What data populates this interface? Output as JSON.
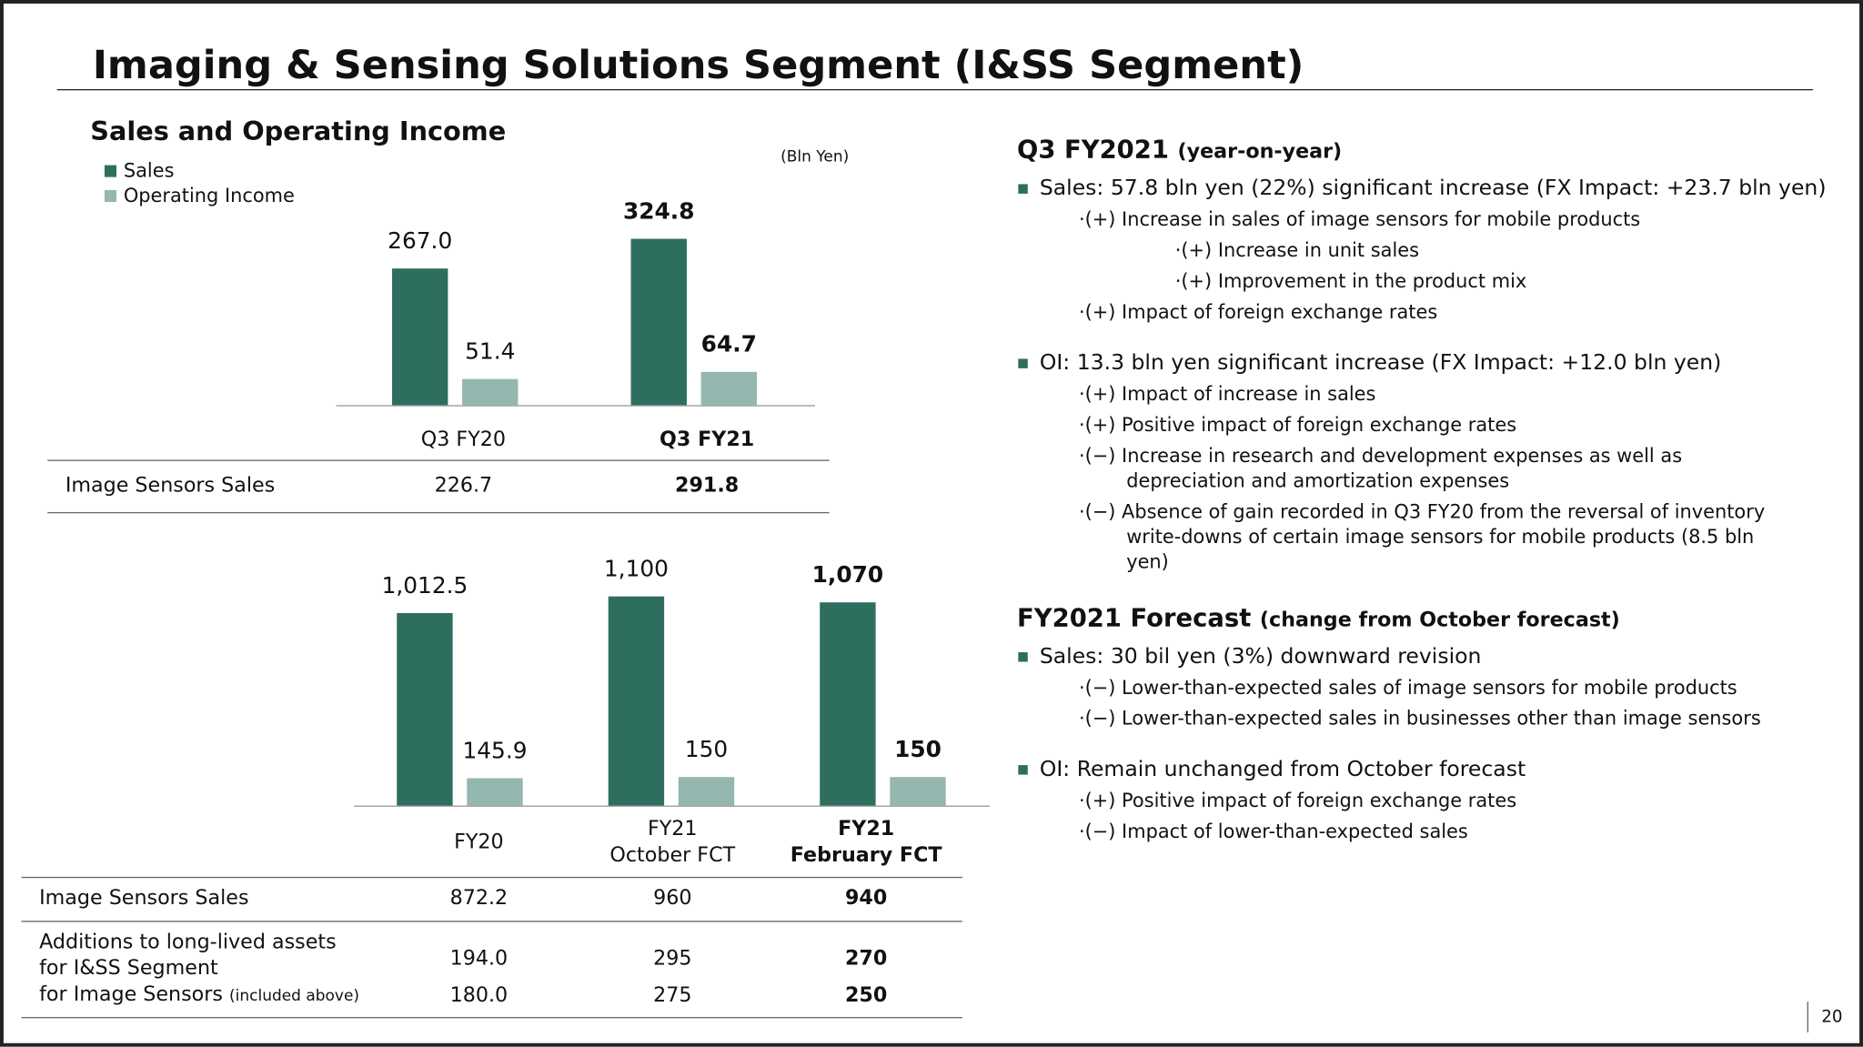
{
  "title": "Imaging & Sensing Solutions Segment (I&SS Segment)",
  "chart_heading": "Sales and Operating Income",
  "unit": "(Bln Yen)",
  "chart_data": [
    {
      "type": "bar",
      "categories": [
        "Q3 FY20",
        "Q3 FY21"
      ],
      "series": [
        {
          "name": "Sales",
          "color": "#2d6e5f",
          "values": [
            267.0,
            324.8
          ],
          "value_labels": [
            "267.0",
            "324.8"
          ]
        },
        {
          "name": "Operating Income",
          "color": "#94b7af",
          "values": [
            51.4,
            64.7
          ]
        }
      ],
      "legend": "top-left"
    },
    {
      "type": "bar",
      "categories": [
        "FY20",
        "FY21\nOctober FCT",
        "FY21\nFebruary FCT"
      ],
      "series": [
        {
          "color": "#2d6e5f",
          "values": [
            1012.5,
            1100,
            1070
          ],
          "value_labels": [
            "1,012.5",
            "1,100",
            "1,070"
          ]
        },
        {
          "color": "#94b7af",
          "values": [
            145.9,
            150,
            150
          ]
        }
      ]
    }
  ],
  "tables": [
    {
      "rows": [
        {
          "label": "Image Sensors Sales",
          "cells": [
            "226.7",
            "291.8"
          ]
        }
      ]
    },
    {
      "rows": [
        {
          "label": "Image Sensors Sales",
          "cells": [
            "872.2",
            "960",
            "940"
          ]
        },
        {
          "label": "Additions to long-lived assets for I&SS Segment",
          "cells": [
            "194.0",
            "295",
            "270"
          ]
        },
        {
          "label": "for Image Sensors",
          "note": "(included above)",
          "cells": [
            "180.0",
            "275",
            "250"
          ]
        }
      ]
    }
  ],
  "sections": [
    {
      "heading": "Q3 FY2021",
      "note": "(year-on-year)",
      "bullets": [
        {
          "text": "Sales: 57.8 bln yen (22%) significant increase (FX Impact: +23.7 bln yen)",
          "details": [
            {
              "text": "·(+) Increase in sales of image sensors for mobile products",
              "details": [
                {
                  "text": "·(+) Increase in unit sales"
                },
                {
                  "text": "·(+) Improvement in the product mix"
                }
              ]
            },
            {
              "text": "·(+) Impact of foreign exchange rates"
            }
          ]
        },
        {
          "text": "OI: 13.3 bln yen significant increase (FX Impact: +12.0 bln yen)",
          "details": [
            {
              "text": "·(+) Impact of increase in sales"
            },
            {
              "text": "·(+) Positive impact of foreign exchange rates"
            },
            {
              "text": "·(−) Increase in research and development expenses as well as depreciation and amortization expenses"
            },
            {
              "text": "·(−) Absence of gain recorded in Q3 FY20 from the reversal of inventory write-downs of certain image sensors for mobile products (8.5 bln yen)"
            }
          ]
        }
      ]
    },
    {
      "heading": "FY2021 Forecast",
      "note": "(change from October forecast)",
      "bullets": [
        {
          "text": "Sales: 30 bil yen (3%) downward revision",
          "details": [
            {
              "text": "·(−) Lower-than-expected sales of image sensors for mobile products"
            },
            {
              "text": "·(−) Lower-than-expected sales in businesses other than image sensors"
            }
          ]
        },
        {
          "text": "OI: Remain unchanged from October forecast",
          "details": [
            {
              "text": "·(+) Positive impact of foreign exchange rates"
            },
            {
              "text": "·(−) Impact of lower-than-expected sales"
            }
          ]
        }
      ]
    }
  ],
  "page_number": "20"
}
